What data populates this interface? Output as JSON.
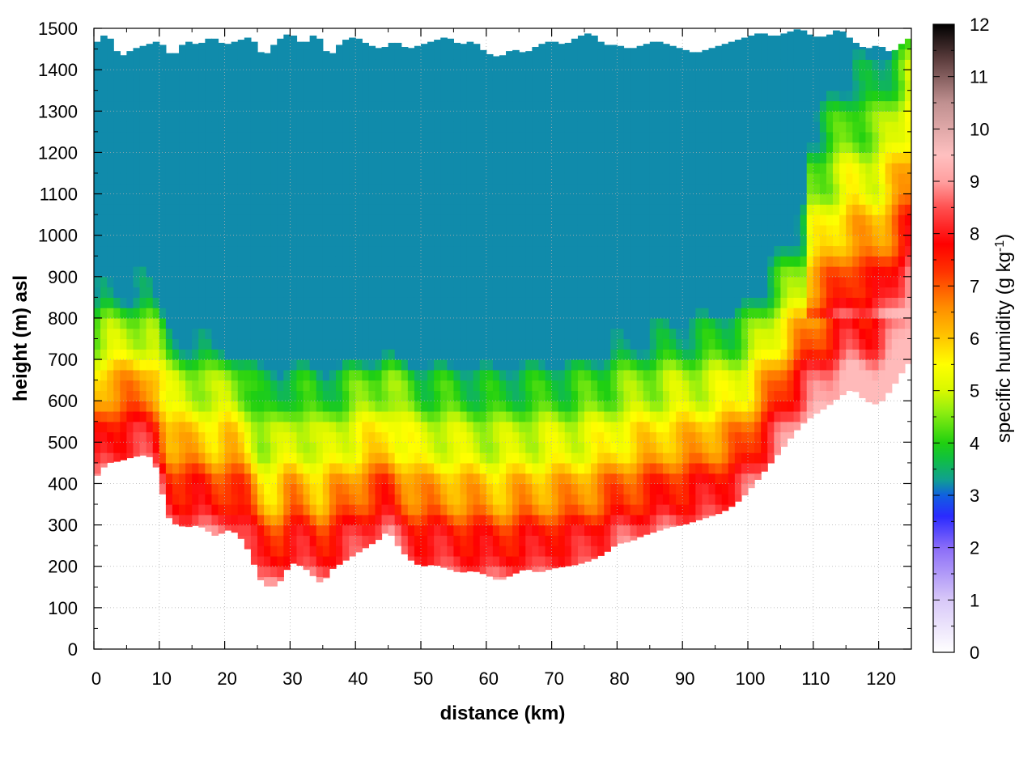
{
  "chart_data": {
    "type": "heatmap",
    "title": "",
    "xlabel": "distance (km)",
    "ylabel": "height (m) asl",
    "colorbar_label": "specific humidity (g kg",
    "colorbar_label_exponent": "-1",
    "colorbar_label_close": ")",
    "xlim": [
      0,
      125
    ],
    "ylim": [
      0,
      1500
    ],
    "clim": [
      0,
      12
    ],
    "grid": true,
    "x_ticks": [
      0,
      10,
      20,
      30,
      40,
      50,
      60,
      70,
      80,
      90,
      100,
      110,
      120
    ],
    "y_ticks": [
      0,
      100,
      200,
      300,
      400,
      500,
      600,
      700,
      800,
      900,
      1000,
      1100,
      1200,
      1300,
      1400,
      1500
    ],
    "colorbar_ticks": [
      0,
      1,
      2,
      3,
      4,
      5,
      6,
      7,
      8,
      9,
      10,
      11,
      12
    ],
    "colormap": [
      [
        0,
        "#ffffff"
      ],
      [
        1,
        "#d8c8f8"
      ],
      [
        2,
        "#8a6cf8"
      ],
      [
        2.6,
        "#2a2aff"
      ],
      [
        3,
        "#1060e0"
      ],
      [
        3.3,
        "#10a090"
      ],
      [
        3.7,
        "#10c040"
      ],
      [
        4,
        "#20d010"
      ],
      [
        4.6,
        "#90ee10"
      ],
      [
        5,
        "#d8f800"
      ],
      [
        5.5,
        "#ffff00"
      ],
      [
        6,
        "#ffc800"
      ],
      [
        6.6,
        "#ff8c00"
      ],
      [
        7.3,
        "#ff3000"
      ],
      [
        7.8,
        "#ff0000"
      ],
      [
        8.5,
        "#ff5050"
      ],
      [
        9,
        "#ffa0a0"
      ],
      [
        9.5,
        "#ffc0c0"
      ],
      [
        10.5,
        "#c09090"
      ],
      [
        11.3,
        "#604040"
      ],
      [
        12,
        "#000000"
      ]
    ],
    "terrain": {
      "x": [
        0,
        2,
        4,
        6,
        8,
        9,
        10,
        11,
        12,
        14,
        16,
        18,
        19,
        20,
        22,
        24,
        25,
        26,
        27,
        28,
        29,
        30,
        32,
        34,
        35,
        36,
        38,
        40,
        42,
        44,
        45,
        46,
        48,
        50,
        52,
        54,
        56,
        58,
        60,
        62,
        64,
        66,
        68,
        70,
        72,
        74,
        76,
        78,
        80,
        82,
        84,
        86,
        88,
        90,
        92,
        94,
        96,
        98,
        100,
        102,
        104,
        106,
        108,
        110,
        112,
        114,
        116,
        118,
        120,
        122,
        124,
        125
      ],
      "height": [
        410,
        450,
        455,
        465,
        470,
        460,
        420,
        330,
        305,
        295,
        300,
        280,
        270,
        290,
        280,
        230,
        180,
        155,
        150,
        155,
        175,
        210,
        200,
        170,
        155,
        190,
        210,
        230,
        250,
        270,
        290,
        260,
        220,
        200,
        205,
        195,
        185,
        190,
        180,
        165,
        180,
        195,
        185,
        195,
        200,
        205,
        215,
        230,
        255,
        260,
        275,
        285,
        295,
        300,
        310,
        320,
        330,
        350,
        380,
        420,
        460,
        500,
        540,
        565,
        585,
        610,
        630,
        600,
        590,
        630,
        680,
        700
      ]
    },
    "top_profile": {
      "x": [
        0,
        2,
        4,
        6,
        8,
        10,
        12,
        14,
        16,
        18,
        20,
        22,
        24,
        26,
        28,
        30,
        32,
        34,
        36,
        38,
        40,
        42,
        44,
        46,
        48,
        50,
        52,
        54,
        56,
        58,
        60,
        62,
        64,
        66,
        68,
        70,
        72,
        74,
        76,
        78,
        80,
        82,
        84,
        86,
        88,
        90,
        92,
        94,
        96,
        98,
        100,
        102,
        104,
        106,
        108,
        110,
        112,
        114,
        116,
        118,
        120,
        122,
        124,
        125
      ],
      "height": [
        1460,
        1490,
        1430,
        1450,
        1460,
        1470,
        1430,
        1470,
        1460,
        1480,
        1460,
        1470,
        1480,
        1430,
        1470,
        1490,
        1460,
        1490,
        1430,
        1470,
        1480,
        1460,
        1450,
        1470,
        1450,
        1460,
        1470,
        1480,
        1460,
        1470,
        1440,
        1430,
        1450,
        1440,
        1460,
        1470,
        1460,
        1480,
        1490,
        1460,
        1460,
        1450,
        1460,
        1470,
        1460,
        1450,
        1440,
        1450,
        1460,
        1470,
        1480,
        1490,
        1480,
        1490,
        1500,
        1480,
        1480,
        1500,
        1470,
        1450,
        1460,
        1440,
        1470,
        1480
      ]
    }
  }
}
